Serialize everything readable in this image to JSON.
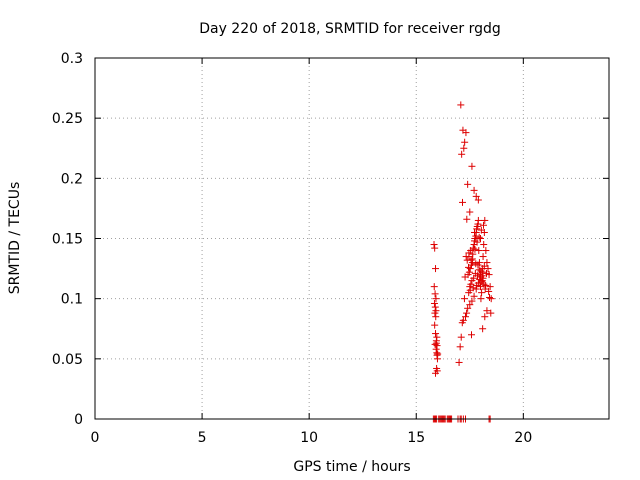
{
  "chart_data": {
    "type": "scatter",
    "title": "Day 220 of 2018, SRMTID for receiver rgdg",
    "xlabel": "GPS time / hours",
    "ylabel": "SRMTID / TECUs",
    "xlim": [
      0,
      24
    ],
    "ylim": [
      0,
      0.3
    ],
    "xticks": [
      0,
      5,
      10,
      15,
      20
    ],
    "xtick_labels": [
      "0",
      "5",
      "10",
      "15",
      "20"
    ],
    "yticks": [
      0,
      0.05,
      0.1,
      0.15,
      0.2,
      0.25,
      0.3
    ],
    "ytick_labels": [
      "0",
      "0.05",
      "0.1",
      "0.15",
      "0.2",
      "0.25",
      "0.3"
    ],
    "grid": true,
    "marker": "+",
    "color": "#dd0000",
    "series": [
      {
        "name": "SRMTID",
        "x": [
          15.83,
          15.86,
          15.9,
          15.84,
          15.88,
          15.92,
          15.85,
          15.89,
          15.87,
          15.91,
          15.86,
          15.9,
          15.94,
          15.88,
          15.93,
          15.96,
          15.97,
          15.99,
          15.95,
          15.98,
          15.9,
          15.94,
          16.0,
          15.92,
          15.96,
          15.97,
          17.0,
          17.05,
          17.1,
          17.2,
          17.15,
          17.3,
          17.35,
          17.4,
          17.25,
          17.45,
          17.5,
          17.55,
          17.6,
          17.28,
          17.42,
          17.48,
          17.52,
          17.58,
          17.62,
          17.38,
          17.33,
          17.46,
          17.54,
          17.66,
          17.7,
          17.72,
          17.75,
          17.78,
          17.8,
          17.82,
          17.85,
          17.88,
          17.9,
          17.92,
          17.95,
          17.98,
          18.0,
          18.02,
          18.05,
          18.08,
          18.1,
          18.12,
          18.15,
          18.18,
          18.2,
          18.25,
          18.3,
          18.35,
          18.4,
          18.45,
          18.5,
          17.5,
          17.6,
          17.7,
          17.8,
          17.9,
          18.0,
          18.1,
          17.44,
          17.56,
          17.64,
          17.74,
          17.84,
          17.94,
          18.04,
          18.14,
          17.36,
          17.68,
          17.76,
          17.86,
          17.96,
          18.06,
          18.16,
          18.22,
          17.08,
          17.18,
          17.12,
          17.22,
          17.16,
          17.26,
          17.32,
          17.4,
          17.5,
          17.6,
          17.7,
          17.8,
          17.9,
          18.0,
          18.1,
          18.2,
          18.3,
          17.58,
          17.72,
          17.88,
          18.02,
          18.18,
          18.42,
          18.48,
          17.46,
          17.62,
          17.78,
          17.94,
          18.08,
          18.24,
          18.38,
          17.52,
          17.66,
          17.82,
          17.98,
          18.12,
          18.28,
          15.8,
          15.85,
          15.9,
          15.95,
          16.05,
          16.1,
          16.15,
          16.2,
          16.25,
          16.3,
          16.35,
          16.45,
          16.5,
          16.55,
          16.6,
          16.65,
          16.95,
          17.05,
          17.1,
          17.2,
          17.3,
          18.4,
          18.45
        ],
        "y": [
          0.145,
          0.142,
          0.125,
          0.11,
          0.104,
          0.1,
          0.096,
          0.093,
          0.088,
          0.085,
          0.078,
          0.071,
          0.065,
          0.062,
          0.058,
          0.055,
          0.053,
          0.05,
          0.042,
          0.04,
          0.038,
          0.063,
          0.054,
          0.09,
          0.068,
          0.061,
          0.047,
          0.06,
          0.068,
          0.082,
          0.08,
          0.085,
          0.088,
          0.092,
          0.1,
          0.105,
          0.11,
          0.112,
          0.115,
          0.118,
          0.12,
          0.122,
          0.125,
          0.128,
          0.13,
          0.132,
          0.135,
          0.138,
          0.14,
          0.142,
          0.145,
          0.148,
          0.15,
          0.152,
          0.155,
          0.158,
          0.16,
          0.162,
          0.165,
          0.14,
          0.13,
          0.12,
          0.11,
          0.1,
          0.105,
          0.115,
          0.125,
          0.135,
          0.145,
          0.155,
          0.165,
          0.14,
          0.13,
          0.125,
          0.12,
          0.11,
          0.1,
          0.095,
          0.098,
          0.102,
          0.108,
          0.113,
          0.118,
          0.122,
          0.126,
          0.132,
          0.137,
          0.141,
          0.147,
          0.151,
          0.157,
          0.161,
          0.166,
          0.117,
          0.121,
          0.119,
          0.116,
          0.114,
          0.112,
          0.108,
          0.261,
          0.24,
          0.22,
          0.225,
          0.18,
          0.23,
          0.238,
          0.195,
          0.172,
          0.21,
          0.19,
          0.185,
          0.182,
          0.15,
          0.075,
          0.085,
          0.09,
          0.07,
          0.155,
          0.128,
          0.123,
          0.127,
          0.101,
          0.088,
          0.135,
          0.133,
          0.129,
          0.124,
          0.119,
          0.111,
          0.106,
          0.107,
          0.109,
          0.111,
          0.113,
          0.117,
          0.121,
          0,
          0,
          0,
          0,
          0,
          0,
          0,
          0,
          0,
          0,
          0,
          0,
          0,
          0,
          0,
          0,
          0,
          0,
          0,
          0,
          0,
          0,
          0
        ]
      }
    ]
  }
}
